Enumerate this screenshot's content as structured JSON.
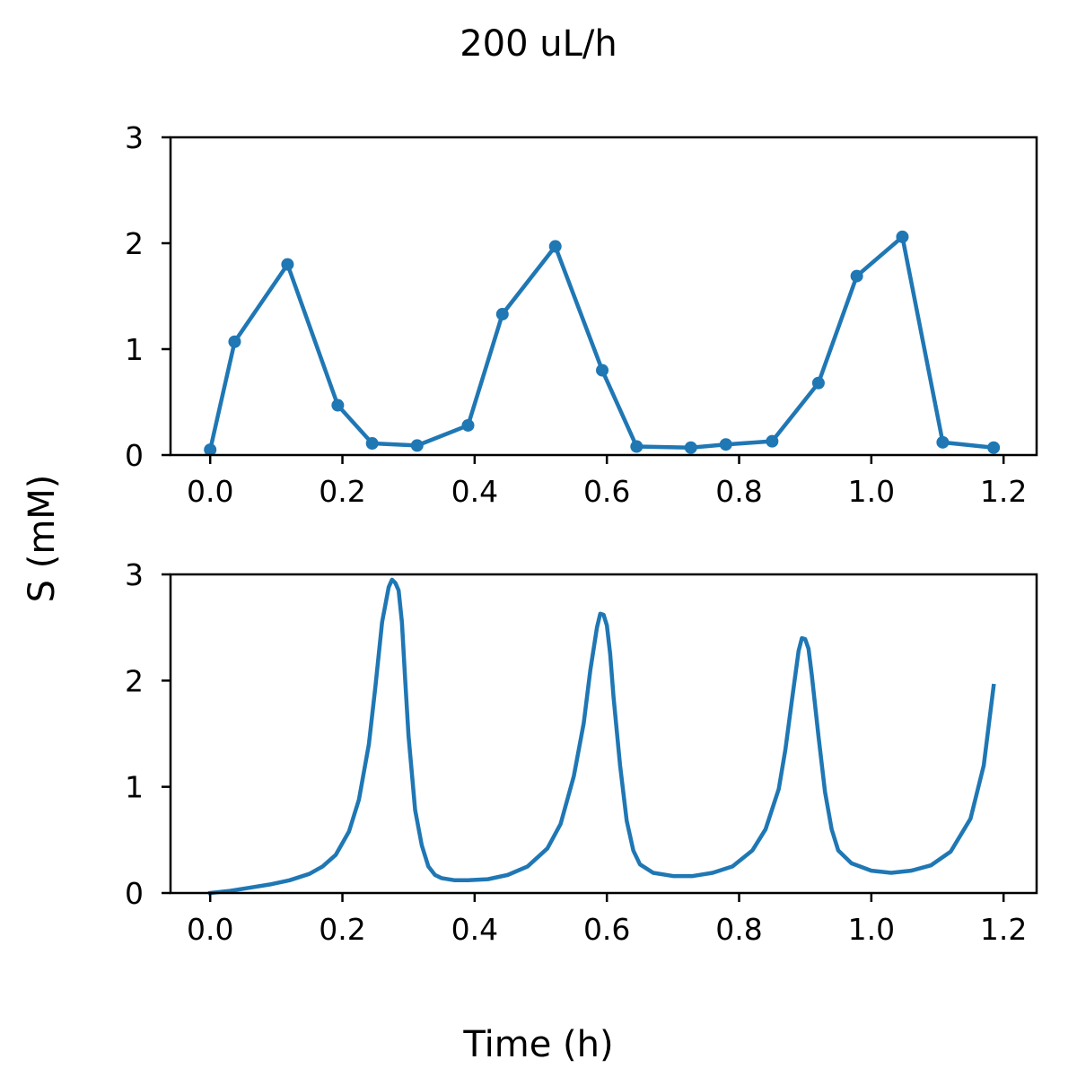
{
  "figure": {
    "title": "200 uL/h",
    "ylabel": "S (mM)",
    "xlabel": "Time (h)"
  },
  "colors": {
    "series": "#1f77b4",
    "axis": "#000000",
    "background": "#ffffff"
  },
  "chart_data": [
    {
      "type": "line",
      "markers": true,
      "xlim": [
        -0.06,
        1.25
      ],
      "ylim": [
        0,
        3
      ],
      "xticks": [
        "0.0",
        "0.2",
        "0.4",
        "0.6",
        "0.8",
        "1.0",
        "1.2"
      ],
      "yticks": [
        "0",
        "1",
        "2",
        "3"
      ],
      "grid": false,
      "series": [
        {
          "x": [
            0.0,
            0.037,
            0.117,
            0.193,
            0.245,
            0.313,
            0.39,
            0.442,
            0.522,
            0.593,
            0.645,
            0.727,
            0.78,
            0.85,
            0.92,
            0.978,
            1.047,
            1.108,
            1.185
          ],
          "y": [
            0.05,
            1.07,
            1.8,
            0.47,
            0.11,
            0.09,
            0.28,
            1.33,
            1.97,
            0.8,
            0.08,
            0.07,
            0.1,
            0.13,
            0.68,
            1.69,
            2.06,
            0.12,
            0.07
          ]
        }
      ]
    },
    {
      "type": "line",
      "markers": false,
      "xlim": [
        -0.06,
        1.25
      ],
      "ylim": [
        0,
        3
      ],
      "xticks": [
        "0.0",
        "0.2",
        "0.4",
        "0.6",
        "0.8",
        "1.0",
        "1.2"
      ],
      "yticks": [
        "0",
        "1",
        "2",
        "3"
      ],
      "grid": false,
      "series": [
        {
          "x": [
            0.0,
            0.03,
            0.06,
            0.09,
            0.12,
            0.15,
            0.17,
            0.19,
            0.21,
            0.225,
            0.24,
            0.25,
            0.26,
            0.27,
            0.275,
            0.28,
            0.285,
            0.29,
            0.295,
            0.3,
            0.31,
            0.32,
            0.33,
            0.34,
            0.35,
            0.37,
            0.39,
            0.42,
            0.45,
            0.48,
            0.51,
            0.53,
            0.55,
            0.565,
            0.575,
            0.585,
            0.59,
            0.595,
            0.6,
            0.605,
            0.61,
            0.62,
            0.63,
            0.64,
            0.65,
            0.67,
            0.7,
            0.73,
            0.76,
            0.79,
            0.82,
            0.84,
            0.86,
            0.87,
            0.88,
            0.89,
            0.895,
            0.9,
            0.905,
            0.91,
            0.92,
            0.93,
            0.94,
            0.95,
            0.97,
            1.0,
            1.03,
            1.06,
            1.09,
            1.12,
            1.15,
            1.17,
            1.185
          ],
          "y": [
            0.0,
            0.02,
            0.05,
            0.08,
            0.12,
            0.18,
            0.25,
            0.36,
            0.58,
            0.88,
            1.4,
            1.95,
            2.55,
            2.88,
            2.95,
            2.92,
            2.85,
            2.55,
            2.0,
            1.48,
            0.78,
            0.45,
            0.25,
            0.17,
            0.14,
            0.12,
            0.12,
            0.13,
            0.17,
            0.25,
            0.42,
            0.65,
            1.1,
            1.6,
            2.1,
            2.5,
            2.63,
            2.62,
            2.52,
            2.25,
            1.85,
            1.2,
            0.68,
            0.4,
            0.27,
            0.19,
            0.16,
            0.16,
            0.19,
            0.25,
            0.4,
            0.6,
            0.98,
            1.35,
            1.82,
            2.28,
            2.4,
            2.39,
            2.3,
            2.05,
            1.48,
            0.95,
            0.6,
            0.4,
            0.28,
            0.21,
            0.19,
            0.21,
            0.26,
            0.39,
            0.7,
            1.2,
            1.95
          ]
        }
      ]
    }
  ]
}
